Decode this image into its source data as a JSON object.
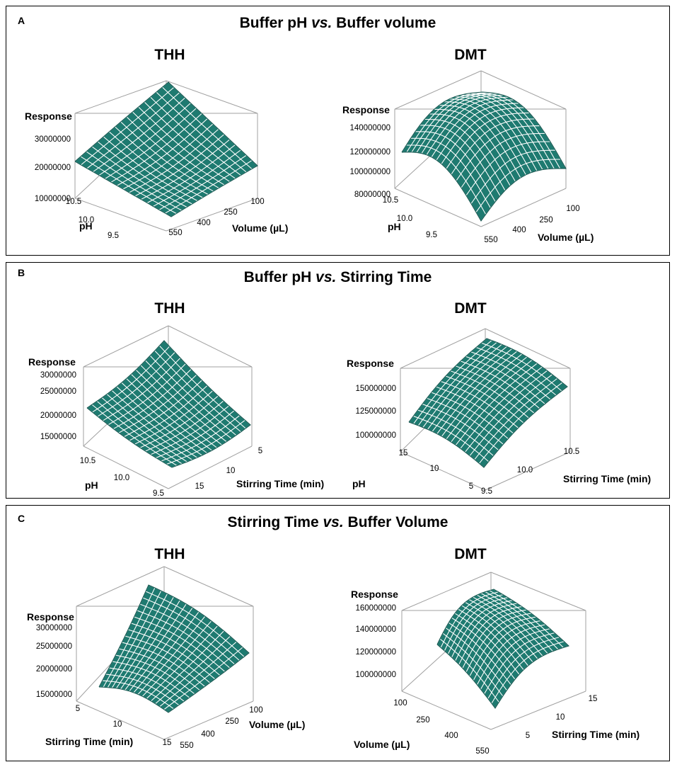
{
  "colors": {
    "surface": "#1e7a70",
    "grid": "#ffffff",
    "box": "#a0a0a0"
  },
  "panels": [
    {
      "label": "A",
      "title_a": "Buffer pH ",
      "title_vs": "vs.",
      "title_b": " Buffer volume"
    },
    {
      "label": "B",
      "title_a": "Buffer pH ",
      "title_vs": "vs.",
      "title_b": " Stirring Time"
    },
    {
      "label": "C",
      "title_a": "Stirring Time ",
      "title_vs": "vs.",
      "title_b": " Buffer Volume"
    }
  ],
  "chart_data": [
    {
      "id": "A-THH",
      "type": "surface",
      "title": "THH",
      "zlabel": "Response",
      "zticks": [
        "30000000",
        "20000000",
        "10000000"
      ],
      "xlabel": "Volume (µL)",
      "xticks": [
        "550",
        "400",
        "250",
        "100"
      ],
      "ylabel": "pH",
      "yticks": [
        "10.5",
        "10.0",
        "9.5"
      ],
      "corner_response": {
        "left": 22000000,
        "back": 34000000,
        "right": 21000000,
        "front": 9000000
      }
    },
    {
      "id": "A-DMT",
      "type": "surface",
      "title": "DMT",
      "zlabel": "Response",
      "zticks": [
        "140000000",
        "120000000",
        "100000000",
        "80000000"
      ],
      "xlabel": "Volume (µL)",
      "xticks": [
        "550",
        "400",
        "250",
        "100"
      ],
      "ylabel": "pH",
      "yticks": [
        "10.5",
        "10.0",
        "9.5"
      ],
      "corner_response": {
        "left": 118000000,
        "back": 140000000,
        "right": 105000000,
        "front": 75000000
      }
    },
    {
      "id": "B-THH",
      "type": "surface",
      "title": "THH",
      "zlabel": "Response",
      "zticks": [
        "30000000",
        "25000000",
        "20000000",
        "15000000"
      ],
      "xlabel": "Stirring Time (min)",
      "xticks": [
        "15",
        "10",
        "5"
      ],
      "ylabel": "pH",
      "yticks": [
        "10.5",
        "10.0",
        "9.5"
      ],
      "corner_response": {
        "left": 22000000,
        "back": 32000000,
        "right": 19000000,
        "front": 14500000
      }
    },
    {
      "id": "B-DMT",
      "type": "surface",
      "title": "DMT",
      "zlabel": "Response",
      "zticks": [
        "150000000",
        "125000000",
        "100000000"
      ],
      "xlabel": "pH",
      "xticks": [
        "9.5",
        "10.0",
        "10.5"
      ],
      "ylabel": "Stirring Time (min)",
      "yticks": [
        "15",
        "10",
        "5"
      ],
      "corner_response": {
        "left": 120000000,
        "back": 165000000,
        "right": 145000000,
        "front": 95000000
      }
    },
    {
      "id": "C-THH",
      "type": "surface",
      "title": "THH",
      "zlabel": "Response",
      "zticks": [
        "30000000",
        "25000000",
        "20000000",
        "15000000"
      ],
      "xlabel": "Volume (µL)",
      "xticks": [
        "550",
        "400",
        "250",
        "100"
      ],
      "ylabel": "Stirring Time (min)",
      "yticks": [
        "5",
        "10",
        "15"
      ],
      "corner_response": {
        "left": 17000000,
        "back": 36000000,
        "right": 22000000,
        "front": 14500000
      }
    },
    {
      "id": "C-DMT",
      "type": "surface",
      "title": "DMT",
      "zlabel": "Response",
      "zticks": [
        "160000000",
        "140000000",
        "120000000",
        "100000000"
      ],
      "xlabel": "Stirring Time (min)",
      "xticks": [
        "5",
        "10",
        "15"
      ],
      "ylabel": "Volume (µL)",
      "yticks": [
        "100",
        "250",
        "400",
        "550"
      ],
      "corner_response": {
        "left": 125000000,
        "back": 162000000,
        "right": 128000000,
        "front": 86000000
      }
    }
  ]
}
